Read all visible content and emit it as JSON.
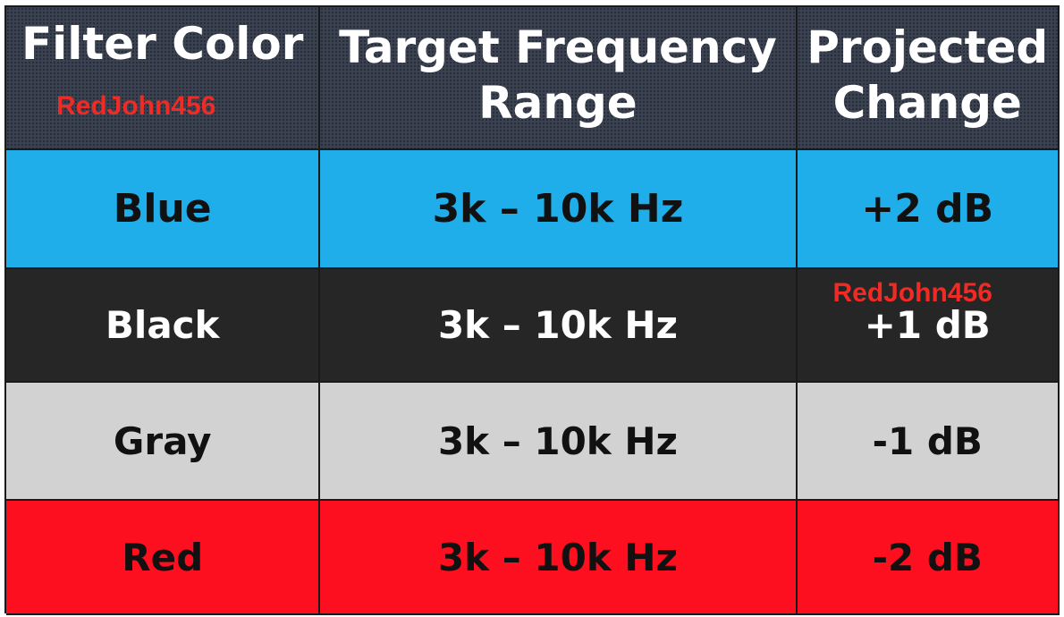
{
  "header": {
    "col1": "Filter Color",
    "col2_line1": "Target Frequency",
    "col2_line2": "Range",
    "col3_line1": "Projected",
    "col3_line2": "Change",
    "bg_color": "#3a4150",
    "text_color": "#ffffff"
  },
  "watermarks": [
    "RedJohn456",
    "RedJohn456"
  ],
  "rows": [
    {
      "color": "Blue",
      "range": "3k – 10k Hz",
      "change": "+2 dB",
      "bg": "#20aeea",
      "fg": "#111111"
    },
    {
      "color": "Black",
      "range": "3k – 10k Hz",
      "change": "+1 dB",
      "bg": "#262626",
      "fg": "#ffffff"
    },
    {
      "color": "Gray",
      "range": "3k – 10k Hz",
      "change": "-1 dB",
      "bg": "#d3d2d3",
      "fg": "#111111"
    },
    {
      "color": "Red",
      "range": "3k – 10k Hz",
      "change": "-2 dB",
      "bg": "#fd0f1f",
      "fg": "#111111"
    }
  ]
}
